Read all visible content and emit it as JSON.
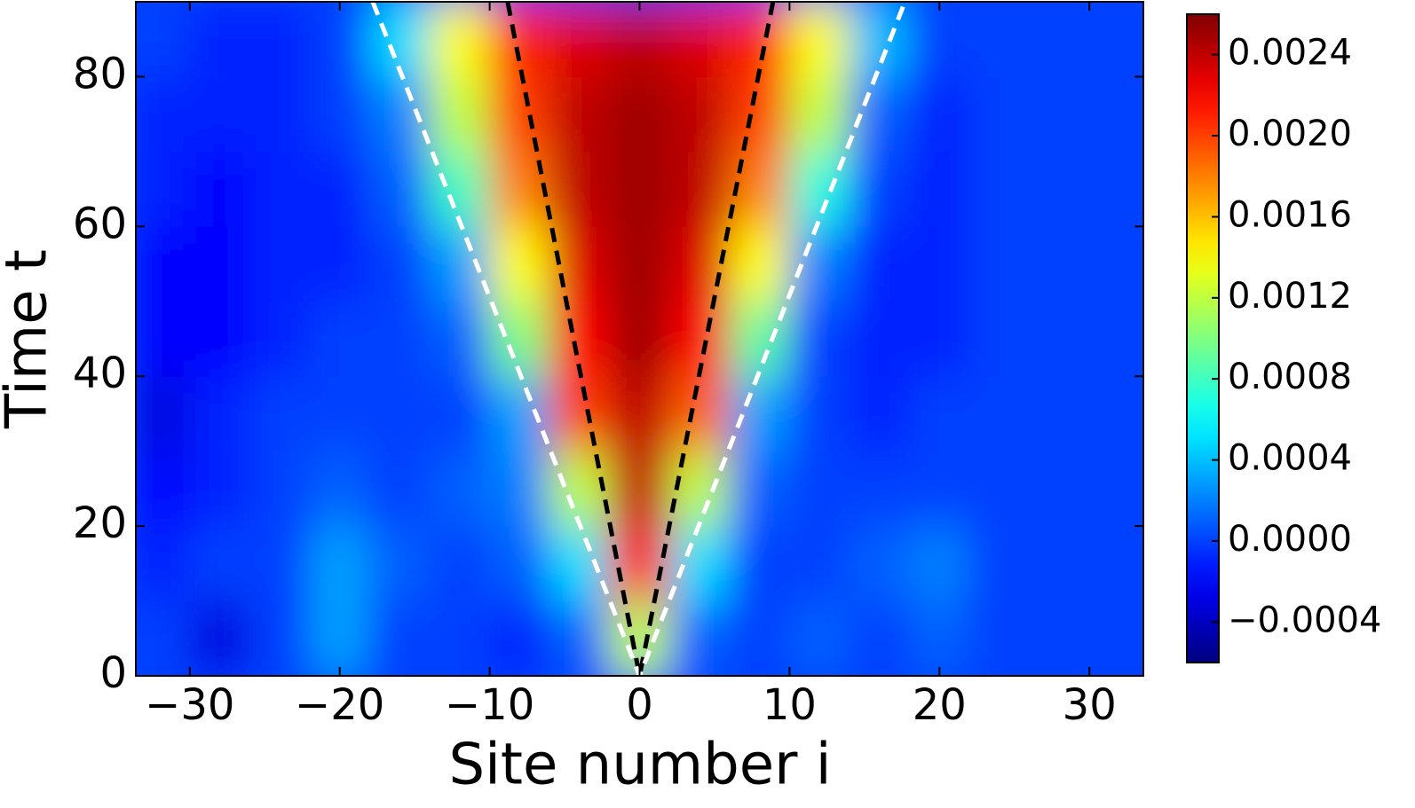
{
  "chart_data": {
    "type": "heatmap",
    "xlabel": "Site number i",
    "ylabel": "Time t",
    "xlim": [
      -33.6,
      33.6
    ],
    "ylim": [
      0,
      90
    ],
    "xticks": [
      {
        "value": -30,
        "label": "−30"
      },
      {
        "value": -20,
        "label": "−20"
      },
      {
        "value": -10,
        "label": "−10"
      },
      0,
      10,
      20,
      30
    ],
    "yticks": [
      0,
      20,
      40,
      60,
      80
    ],
    "x": [
      -32,
      -28,
      -24,
      -20,
      -16,
      -12,
      -8,
      -4,
      0,
      4,
      8,
      12,
      16,
      20,
      24,
      28,
      32
    ],
    "y": [
      5,
      15,
      25,
      35,
      45,
      55,
      65,
      75,
      85
    ],
    "z": [
      [
        0,
        -0.0003,
        0,
        0.0003,
        0,
        0,
        -0.0001,
        0.0001,
        0.0012,
        0.0001,
        0,
        0.0001,
        0,
        0.0001,
        0,
        0,
        0
      ],
      [
        -0.0001,
        0,
        0,
        0.0003,
        0.0001,
        0,
        0.0001,
        0.0005,
        0.0022,
        0.0005,
        0,
        0,
        0.0001,
        0.0002,
        0,
        0,
        0
      ],
      [
        -0.0002,
        -0.0001,
        0,
        0.0001,
        0,
        0.0001,
        0.0002,
        0.0012,
        0.0024,
        0.0012,
        0.0001,
        0,
        0,
        0,
        0,
        0,
        0
      ],
      [
        -0.0003,
        -0.0001,
        0,
        0,
        0,
        0,
        0.0003,
        0.002,
        0.0024,
        0.0019,
        0.0003,
        0,
        -0.0001,
        0,
        0,
        0,
        0
      ],
      [
        -0.0002,
        -0.0002,
        -0.0001,
        0,
        0,
        0.0001,
        0.001,
        0.0022,
        0.0025,
        0.0022,
        0.0009,
        0,
        -0.0001,
        -0.0001,
        0,
        0,
        0
      ],
      [
        -0.0002,
        -0.0002,
        -0.0001,
        -0.0001,
        0,
        0.0003,
        0.0014,
        0.0023,
        0.0025,
        0.0023,
        0.0014,
        0.0002,
        -0.0001,
        -0.0001,
        0,
        0,
        0
      ],
      [
        -0.0001,
        -0.0002,
        -0.0001,
        -0.0001,
        0.0001,
        0.0008,
        0.0018,
        0.0024,
        0.0025,
        0.0024,
        0.0018,
        0.0007,
        0,
        -0.0001,
        0,
        0,
        0
      ],
      [
        -0.0001,
        -0.0001,
        -0.0001,
        0,
        0.0002,
        0.0012,
        0.002,
        0.0024,
        0.0025,
        0.0024,
        0.002,
        0.0012,
        0.0001,
        -0.0001,
        0,
        0,
        0
      ],
      [
        0,
        -0.0001,
        -0.0001,
        0,
        0.0005,
        0.0014,
        0.0021,
        0.0023,
        0.0024,
        0.0023,
        0.0021,
        0.0014,
        0.0004,
        0,
        0,
        0,
        0
      ]
    ],
    "clim": [
      -0.0006,
      0.0026
    ],
    "cticks": [
      {
        "value": -0.0004,
        "label": "−0.0004"
      },
      {
        "value": 0,
        "label": "0.0000"
      },
      {
        "value": 0.0004,
        "label": "0.0004"
      },
      {
        "value": 0.0008,
        "label": "0.0008"
      },
      {
        "value": 0.0012,
        "label": "0.0012"
      },
      {
        "value": 0.0016,
        "label": "0.0016"
      },
      {
        "value": 0.002,
        "label": "0.0020"
      },
      {
        "value": 0.0024,
        "label": "0.0024"
      }
    ],
    "colormap": "jet",
    "lines": [
      {
        "color": "#000000",
        "x": [
          -8.8,
          0,
          8.9
        ],
        "y": [
          90,
          0,
          90
        ]
      },
      {
        "color": "#ffffff",
        "x": [
          -17.8,
          0,
          17.7
        ],
        "y": [
          90,
          0,
          90
        ]
      }
    ]
  }
}
